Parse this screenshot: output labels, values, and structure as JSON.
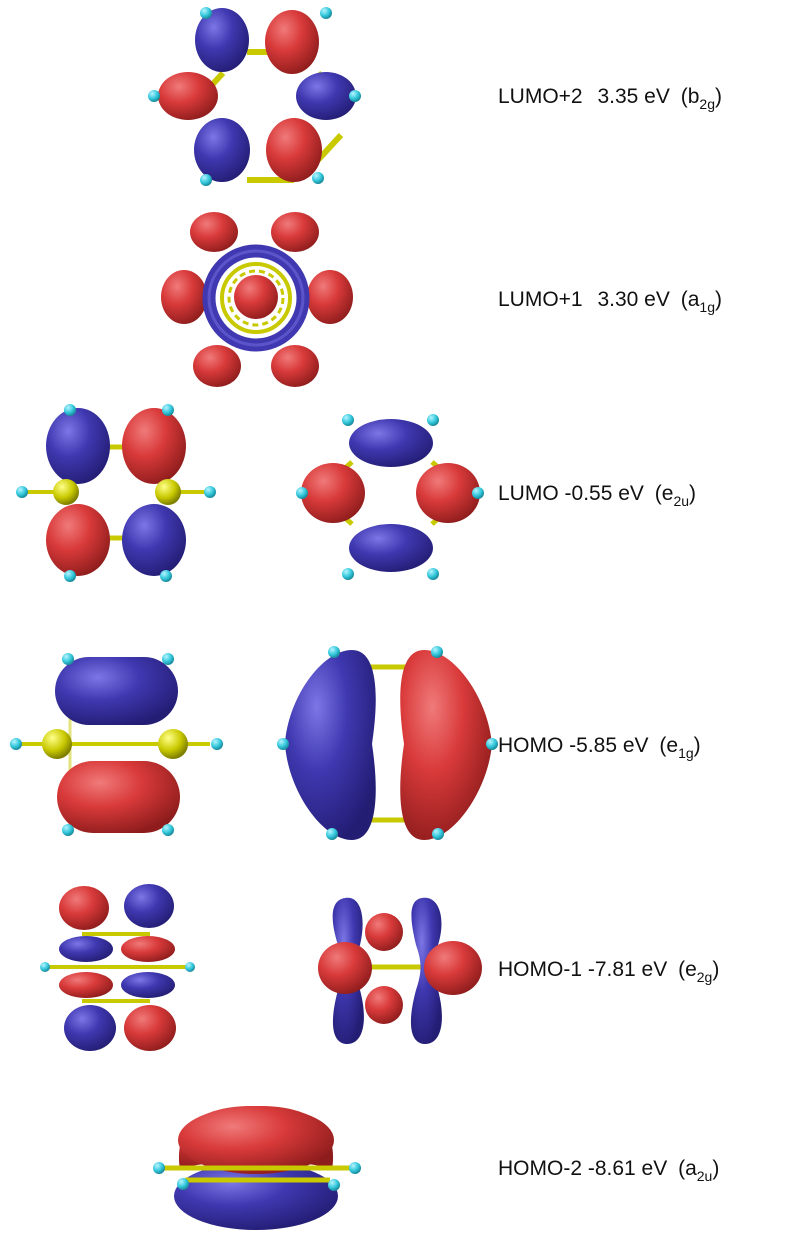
{
  "colors": {
    "positive_lobe": "#d93a3a",
    "negative_lobe": "#3f38b0",
    "carbon_atom": "#c9c900",
    "hydrogen_atom": "#33c8dc",
    "bond": "#c9c900",
    "label_text": "#111111"
  },
  "orbitals": [
    {
      "name": "LUMO+2",
      "energy": "3.35 eV",
      "symmetry_main": "b",
      "symmetry_sub": "2g",
      "views": 1
    },
    {
      "name": "LUMO+1",
      "energy": "3.30 eV",
      "symmetry_main": "a",
      "symmetry_sub": "1g",
      "views": 1
    },
    {
      "name": "LUMO",
      "energy": "-0.55 eV",
      "symmetry_main": "e",
      "symmetry_sub": "2u",
      "views": 2
    },
    {
      "name": "HOMO",
      "energy": "-5.85 eV",
      "symmetry_main": "e",
      "symmetry_sub": "1g",
      "views": 2
    },
    {
      "name": "HOMO-1",
      "energy": "-7.81 eV",
      "symmetry_main": "e",
      "symmetry_sub": "2g",
      "views": 2
    },
    {
      "name": "HOMO-2",
      "energy": "-8.61 eV",
      "symmetry_main": "a",
      "symmetry_sub": "2u",
      "views": 1
    }
  ]
}
